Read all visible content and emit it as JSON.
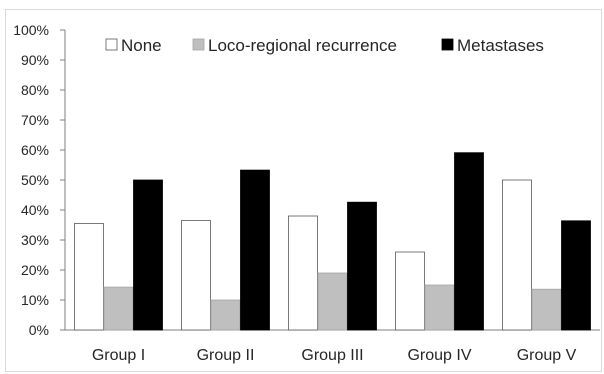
{
  "chart_data": {
    "type": "bar",
    "categories": [
      "Group I",
      "Group II",
      "Group III",
      "Group IV",
      "Group V"
    ],
    "series": [
      {
        "name": "None",
        "values": [
          35.5,
          36.5,
          38,
          26,
          50
        ],
        "color": "#ffffff"
      },
      {
        "name": "Loco-regional recurrence",
        "values": [
          14.3,
          10,
          19,
          15,
          13.6
        ],
        "color": "#bfbfbf"
      },
      {
        "name": "Metastases",
        "values": [
          50,
          53.3,
          42.6,
          59.1,
          36.4
        ],
        "color": "#000000"
      }
    ],
    "yticks": [
      "0%",
      "10%",
      "20%",
      "30%",
      "40%",
      "50%",
      "60%",
      "70%",
      "80%",
      "90%",
      "100%"
    ],
    "ylim": [
      0,
      100
    ],
    "grid": false,
    "legend_position": "top"
  }
}
